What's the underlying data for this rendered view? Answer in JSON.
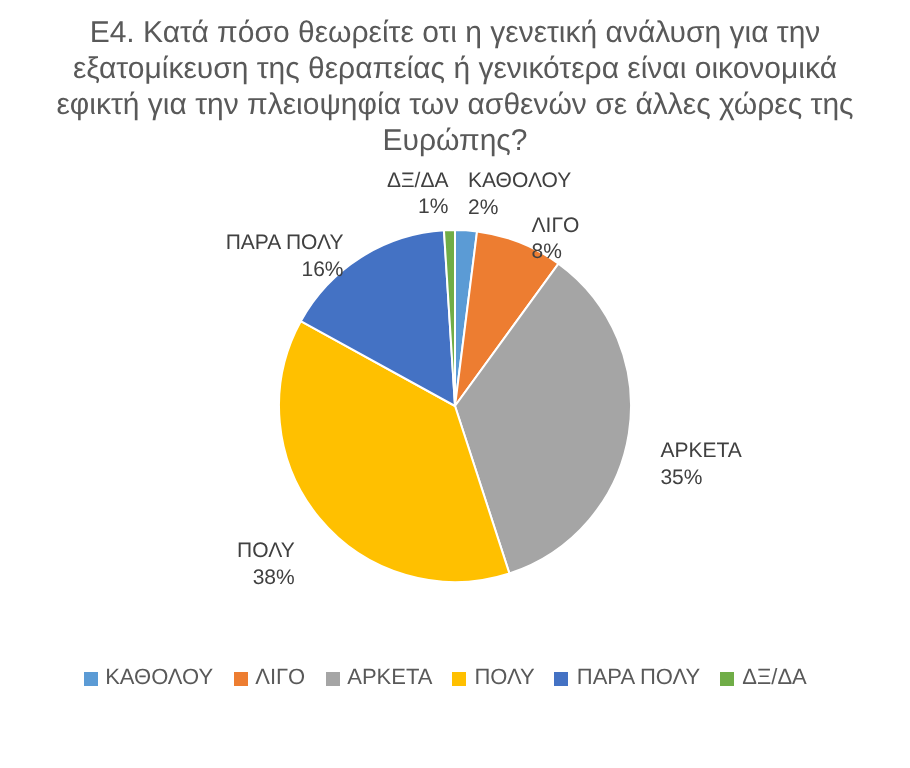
{
  "chart_data": {
    "type": "pie",
    "title": "Ε4. Κατά πόσο θεωρείτε οτι η γενετική ανάλυση για την εξατομίκευση της θεραπείας ή γενικότερα είναι οικονομικά εφικτή για την πλειοψηφία των ασθενών σε άλλες χώρες της Ευρώπης?",
    "categories": [
      "ΚΑΘΟΛΟΥ",
      "ΛΙΓΟ",
      "ΑΡΚΕΤΑ",
      "ΠΟΛΥ",
      "ΠΑΡΑ ΠΟΛΥ",
      "ΔΞ/ΔΑ"
    ],
    "values": [
      2,
      8,
      35,
      38,
      16,
      1
    ],
    "value_labels": [
      "2%",
      "8%",
      "35%",
      "38%",
      "16%",
      "1%"
    ],
    "colors": [
      "#5b9bd5",
      "#ed7d31",
      "#a5a5a5",
      "#ffc000",
      "#4472c4",
      "#70ad47"
    ],
    "legend": "bottom"
  }
}
